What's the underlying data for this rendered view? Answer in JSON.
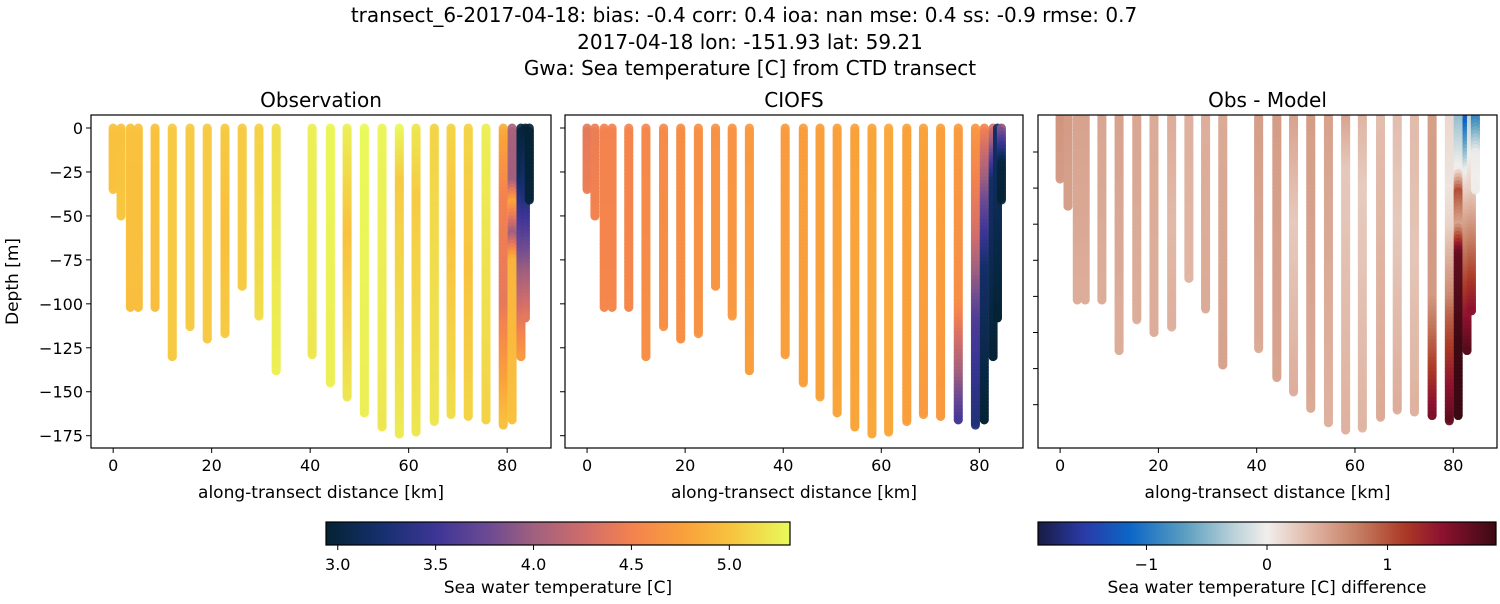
{
  "title_lines": [
    "transect_6-2017-04-18: bias: -0.4  corr: 0.4  ioa: nan  mse: 0.4  ss: -0.9  rmse: 0.7",
    "2017-04-18 lon: -151.93 lat: 59.21",
    "Gwa: Sea temperature [C] from CTD transect"
  ],
  "chart_data": [
    {
      "type": "scatter",
      "title": "Observation",
      "xlabel": "along-transect distance [km]",
      "ylabel": "Depth [m]",
      "xlim": [
        -4.5,
        88.9
      ],
      "ylim": [
        -182,
        7.4
      ],
      "xticks": [
        0,
        20,
        40,
        60,
        80
      ],
      "yticks": [
        0,
        -25,
        -50,
        -75,
        -100,
        -125,
        -150,
        -175
      ],
      "ytick_labels": [
        "0",
        "−25",
        "−50",
        "−75",
        "−100",
        "−125",
        "−150",
        "−175"
      ],
      "field": "obs",
      "colormap": "thermal"
    },
    {
      "type": "scatter",
      "title": "CIOFS",
      "xlabel": "along-transect distance [km]",
      "xlim": [
        -4.5,
        88.9
      ],
      "ylim": [
        -182,
        7.4
      ],
      "xticks": [
        0,
        20,
        40,
        60,
        80
      ],
      "yticks": [
        0,
        -25,
        -50,
        -75,
        -100,
        -125,
        -150,
        -175
      ],
      "field": "model",
      "colormap": "thermal"
    },
    {
      "type": "scatter",
      "title": "Obs - Model",
      "xlabel": "along-transect distance [km]",
      "xlim": [
        -4.5,
        88.9
      ],
      "ylim": [
        -184,
        0.5
      ],
      "xticks": [
        0,
        20,
        40,
        60,
        80
      ],
      "yticks": [
        -20,
        -40,
        -60,
        -80,
        -100,
        -120,
        -140,
        -160
      ],
      "field": "diff",
      "colormap": "balance"
    }
  ],
  "casts": [
    {
      "km": 0,
      "depth": 35,
      "obs": [
        [
          0,
          5.0
        ],
        [
          35,
          5.0
        ]
      ],
      "model": [
        [
          0,
          4.4
        ],
        [
          35,
          4.45
        ]
      ]
    },
    {
      "km": 1.6,
      "depth": 50,
      "obs": [
        [
          0,
          5.0
        ],
        [
          50,
          5.02
        ]
      ],
      "model": [
        [
          0,
          4.45
        ],
        [
          50,
          4.5
        ]
      ]
    },
    {
      "km": 3.5,
      "depth": 102,
      "obs": [
        [
          0,
          5.0
        ],
        [
          102,
          4.98
        ]
      ],
      "model": [
        [
          0,
          4.5
        ],
        [
          102,
          4.55
        ]
      ]
    },
    {
      "km": 5.1,
      "depth": 102,
      "obs": [
        [
          0,
          5.0
        ],
        [
          102,
          4.98
        ]
      ],
      "model": [
        [
          0,
          4.5
        ],
        [
          102,
          4.55
        ]
      ]
    },
    {
      "km": 8.5,
      "depth": 102,
      "obs": [
        [
          0,
          5.0
        ],
        [
          102,
          4.98
        ]
      ],
      "model": [
        [
          0,
          4.52
        ],
        [
          102,
          4.55
        ]
      ]
    },
    {
      "km": 12,
      "depth": 130,
      "obs": [
        [
          0,
          5.05
        ],
        [
          130,
          5.05
        ]
      ],
      "model": [
        [
          0,
          4.55
        ],
        [
          130,
          4.62
        ]
      ]
    },
    {
      "km": 15.6,
      "depth": 113,
      "obs": [
        [
          0,
          5.05
        ],
        [
          113,
          5.05
        ]
      ],
      "model": [
        [
          0,
          4.58
        ],
        [
          113,
          4.62
        ]
      ]
    },
    {
      "km": 19.1,
      "depth": 120,
      "obs": [
        [
          0,
          5.05
        ],
        [
          120,
          5.05
        ]
      ],
      "model": [
        [
          0,
          4.6
        ],
        [
          120,
          4.62
        ]
      ]
    },
    {
      "km": 22.7,
      "depth": 117,
      "obs": [
        [
          0,
          5.05
        ],
        [
          60,
          4.98
        ],
        [
          117,
          5.05
        ]
      ],
      "model": [
        [
          0,
          4.62
        ],
        [
          117,
          4.64
        ]
      ]
    },
    {
      "km": 26.2,
      "depth": 90,
      "obs": [
        [
          0,
          5.05
        ],
        [
          90,
          5.05
        ]
      ],
      "model": [
        [
          0,
          4.65
        ],
        [
          90,
          4.68
        ]
      ]
    },
    {
      "km": 29.6,
      "depth": 107,
      "obs": [
        [
          0,
          5.08
        ],
        [
          107,
          5.15
        ]
      ],
      "model": [
        [
          0,
          4.66
        ],
        [
          107,
          4.7
        ]
      ]
    },
    {
      "km": 33.1,
      "depth": 138,
      "obs": [
        [
          0,
          5.15
        ],
        [
          138,
          5.25
        ]
      ],
      "model": [
        [
          0,
          4.7
        ],
        [
          138,
          4.75
        ]
      ]
    },
    {
      "km": 40.4,
      "depth": 129,
      "obs": [
        [
          0,
          5.25
        ],
        [
          129,
          5.2
        ]
      ],
      "model": [
        [
          0,
          4.72
        ],
        [
          129,
          4.75
        ]
      ]
    },
    {
      "km": 44.1,
      "depth": 145,
      "obs": [
        [
          0,
          5.28
        ],
        [
          145,
          5.25
        ]
      ],
      "model": [
        [
          0,
          4.74
        ],
        [
          145,
          4.76
        ]
      ]
    },
    {
      "km": 47.5,
      "depth": 153,
      "obs": [
        [
          0,
          5.25
        ],
        [
          60,
          5.0
        ],
        [
          153,
          5.2
        ]
      ],
      "model": [
        [
          0,
          4.75
        ],
        [
          153,
          4.78
        ]
      ]
    },
    {
      "km": 51,
      "depth": 162,
      "obs": [
        [
          0,
          5.3
        ],
        [
          162,
          5.25
        ]
      ],
      "model": [
        [
          0,
          4.76
        ],
        [
          162,
          4.8
        ]
      ]
    },
    {
      "km": 54.6,
      "depth": 170,
      "obs": [
        [
          0,
          5.28
        ],
        [
          170,
          5.2
        ]
      ],
      "model": [
        [
          0,
          4.78
        ],
        [
          170,
          4.8
        ]
      ]
    },
    {
      "km": 58.1,
      "depth": 174,
      "obs": [
        [
          0,
          5.3
        ],
        [
          30,
          5.05
        ],
        [
          174,
          5.22
        ]
      ],
      "model": [
        [
          0,
          4.8
        ],
        [
          174,
          4.82
        ]
      ]
    },
    {
      "km": 61.5,
      "depth": 173,
      "obs": [
        [
          0,
          5.2
        ],
        [
          40,
          5.05
        ],
        [
          173,
          5.2
        ]
      ],
      "model": [
        [
          0,
          4.82
        ],
        [
          173,
          4.82
        ]
      ]
    },
    {
      "km": 65.2,
      "depth": 167,
      "obs": [
        [
          0,
          5.1
        ],
        [
          167,
          5.2
        ]
      ],
      "model": [
        [
          0,
          4.78
        ],
        [
          167,
          4.75
        ]
      ]
    },
    {
      "km": 68.6,
      "depth": 163,
      "obs": [
        [
          0,
          5.1
        ],
        [
          60,
          5.0
        ],
        [
          163,
          5.15
        ]
      ],
      "model": [
        [
          0,
          4.78
        ],
        [
          163,
          4.72
        ]
      ]
    },
    {
      "km": 72.1,
      "depth": 164,
      "obs": [
        [
          0,
          5.1
        ],
        [
          80,
          5.0
        ],
        [
          164,
          5.1
        ]
      ],
      "model": [
        [
          0,
          4.76
        ],
        [
          164,
          4.7
        ]
      ]
    },
    {
      "km": 75.7,
      "depth": 166,
      "obs": [
        [
          0,
          5.25
        ],
        [
          166,
          5.1
        ]
      ],
      "model": [
        [
          0,
          4.72
        ],
        [
          100,
          4.6
        ],
        [
          140,
          4.0
        ],
        [
          166,
          3.55
        ]
      ]
    },
    {
      "km": 79.2,
      "depth": 169,
      "obs": [
        [
          0,
          4.85
        ],
        [
          40,
          4.5
        ],
        [
          100,
          4.4
        ],
        [
          169,
          5.0
        ]
      ],
      "model": [
        [
          0,
          4.7
        ],
        [
          60,
          4.3
        ],
        [
          110,
          3.6
        ],
        [
          169,
          3.3
        ]
      ]
    },
    {
      "km": 81,
      "depth": 166,
      "obs": [
        [
          0,
          4.05
        ],
        [
          30,
          4.0
        ],
        [
          42,
          4.8
        ],
        [
          60,
          4.0
        ],
        [
          75,
          4.9
        ],
        [
          166,
          5.0
        ]
      ],
      "model": [
        [
          0,
          4.5
        ],
        [
          40,
          3.8
        ],
        [
          80,
          3.2
        ],
        [
          166,
          2.95
        ]
      ]
    },
    {
      "km": 82.8,
      "depth": 130,
      "obs": [
        [
          0,
          3.0
        ],
        [
          25,
          3.1
        ],
        [
          50,
          3.5
        ],
        [
          90,
          4.1
        ],
        [
          130,
          4.7
        ]
      ],
      "model": [
        [
          0,
          4.3
        ],
        [
          30,
          3.2
        ],
        [
          130,
          2.95
        ]
      ]
    },
    {
      "km": 83.7,
      "depth": 108,
      "obs": [
        [
          0,
          2.95
        ],
        [
          40,
          3.3
        ],
        [
          70,
          3.8
        ],
        [
          108,
          4.4
        ]
      ],
      "model": [
        [
          0,
          3.2
        ],
        [
          108,
          2.95
        ]
      ]
    },
    {
      "km": 84.5,
      "depth": 41,
      "obs": [
        [
          0,
          2.95
        ],
        [
          41,
          2.97
        ]
      ],
      "model": [
        [
          0,
          3.9
        ],
        [
          20,
          3.0
        ],
        [
          41,
          2.95
        ]
      ]
    }
  ],
  "colorbars": [
    {
      "label": "Sea water temperature [C]",
      "range": [
        2.94,
        5.31
      ],
      "ticks": [
        3.0,
        3.5,
        4.0,
        4.5,
        5.0
      ],
      "tick_labels": [
        "3.0",
        "3.5",
        "4.0",
        "4.5",
        "5.0"
      ],
      "colormap": "thermal"
    },
    {
      "label": "Sea water temperature [C] difference",
      "range": [
        -1.9,
        1.9
      ],
      "ticks": [
        -1,
        0,
        1
      ],
      "tick_labels": [
        "−1",
        "0",
        "1"
      ],
      "colormap": "balance"
    }
  ],
  "colormaps": {
    "thermal": [
      [
        0,
        "#042333"
      ],
      [
        0.12,
        "#15306e"
      ],
      [
        0.236,
        "#3d3596"
      ],
      [
        0.35,
        "#6c4a93"
      ],
      [
        0.447,
        "#a0607e"
      ],
      [
        0.56,
        "#d06d6b"
      ],
      [
        0.658,
        "#f3824f"
      ],
      [
        0.77,
        "#f9a03b"
      ],
      [
        0.869,
        "#f8c13e"
      ],
      [
        1,
        "#e8fa5b"
      ]
    ],
    "balance": [
      [
        0,
        "#181c43"
      ],
      [
        0.1,
        "#2a3aa7"
      ],
      [
        0.2,
        "#0c66c6"
      ],
      [
        0.32,
        "#5a9ec0"
      ],
      [
        0.43,
        "#bcd3d9"
      ],
      [
        0.5,
        "#f1eeec"
      ],
      [
        0.6,
        "#dfb4a2"
      ],
      [
        0.7,
        "#c57d62"
      ],
      [
        0.8,
        "#ac3a26"
      ],
      [
        0.88,
        "#8e1230"
      ],
      [
        1,
        "#3c0912"
      ]
    ]
  }
}
